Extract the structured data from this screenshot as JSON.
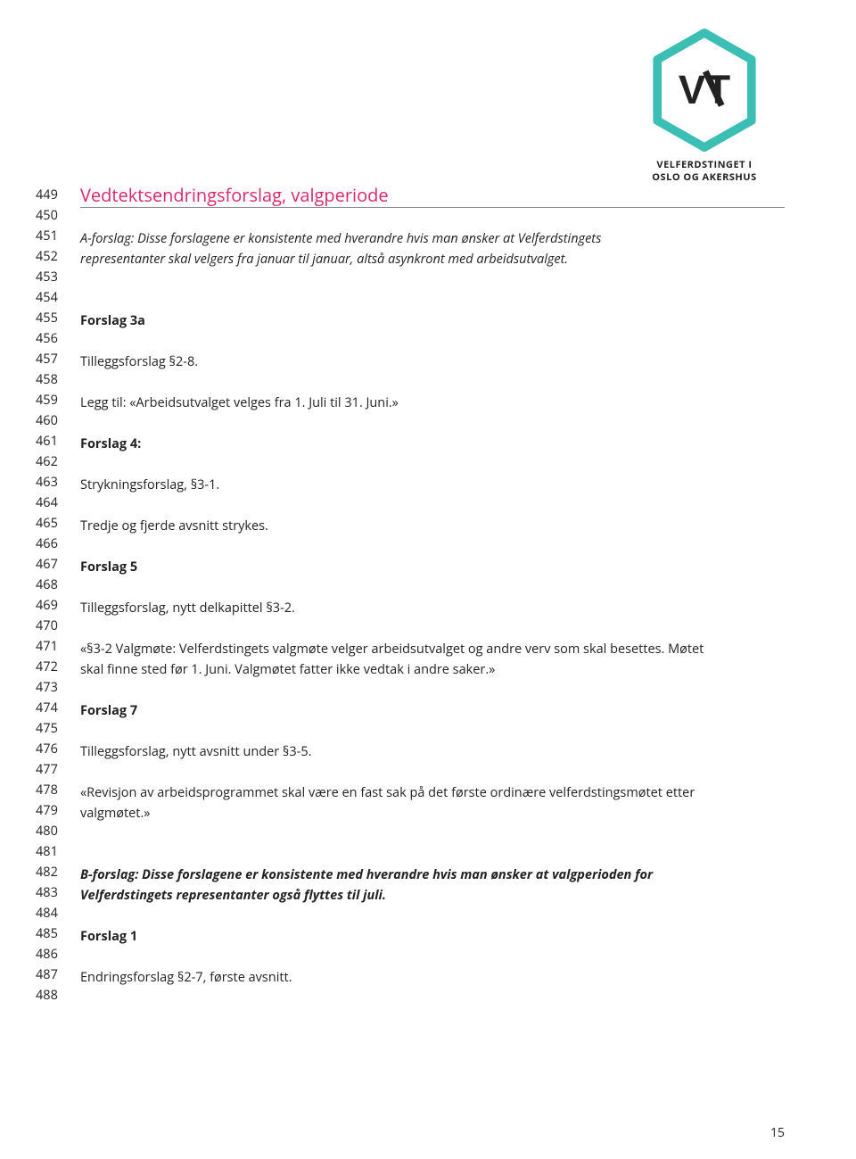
{
  "logo": {
    "caption_line1": "VELFERDSTINGET I",
    "caption_line2": "OSLO OG AKERSHUS",
    "vt_text": "VT",
    "hex_stroke": "#3bbfb5",
    "hex_stroke_width": 8,
    "text_color": "#222222"
  },
  "line_numbers": {
    "start": 449,
    "end": 488
  },
  "heading": {
    "text": "Vedtektsendringsforslag, valgperiode",
    "color": "#d9296c",
    "fontsize": 20,
    "underline_color": "#888888"
  },
  "body_text": {
    "fontsize": 14.5,
    "line_height": 23,
    "color": "#222222"
  },
  "page_background": "#ffffff",
  "lines": [
    {
      "type": "heading",
      "text": "Vedtektsendringsforslag, valgperiode"
    },
    {
      "type": "blank"
    },
    {
      "type": "para",
      "style": "italic",
      "text": "A-forslag: Disse forslagene er konsistente med hverandre hvis man ønsker at Velferdstingets"
    },
    {
      "type": "para",
      "style": "italic",
      "text": "representanter skal velgers fra januar til januar, altså asynkront med arbeidsutvalget."
    },
    {
      "type": "blank"
    },
    {
      "type": "blank"
    },
    {
      "type": "para",
      "style": "bold",
      "text": "Forslag 3a"
    },
    {
      "type": "blank"
    },
    {
      "type": "para",
      "text": "Tilleggsforslag §2-8."
    },
    {
      "type": "blank"
    },
    {
      "type": "para",
      "text": "Legg til: «Arbeidsutvalget velges fra 1. Juli til 31. Juni.»"
    },
    {
      "type": "blank"
    },
    {
      "type": "para",
      "style": "bold",
      "text": "Forslag 4:"
    },
    {
      "type": "blank"
    },
    {
      "type": "para",
      "text": "Strykningsforslag, §3-1."
    },
    {
      "type": "blank"
    },
    {
      "type": "para",
      "text": "Tredje og fjerde avsnitt strykes."
    },
    {
      "type": "blank"
    },
    {
      "type": "para",
      "style": "bold",
      "text": "Forslag 5"
    },
    {
      "type": "blank"
    },
    {
      "type": "para",
      "text": "Tilleggsforslag, nytt delkapittel §3-2."
    },
    {
      "type": "blank"
    },
    {
      "type": "para",
      "text": "«§3-2 Valgmøte: Velferdstingets valgmøte velger arbeidsutvalget og andre verv som skal besettes. Møtet"
    },
    {
      "type": "para",
      "text": "skal finne sted før 1. Juni. Valgmøtet fatter ikke vedtak i andre saker.»"
    },
    {
      "type": "blank"
    },
    {
      "type": "para",
      "style": "bold",
      "text": "Forslag 7"
    },
    {
      "type": "blank"
    },
    {
      "type": "para",
      "text": "Tilleggsforslag, nytt avsnitt under §3-5."
    },
    {
      "type": "blank"
    },
    {
      "type": "para",
      "text": "«Revisjon av arbeidsprogrammet skal være en fast sak på det første ordinære velferdstingsmøtet etter"
    },
    {
      "type": "para",
      "text": "valgmøtet.»"
    },
    {
      "type": "blank"
    },
    {
      "type": "blank"
    },
    {
      "type": "para",
      "style": "bold-italic",
      "text": "B-forslag: Disse forslagene er konsistente med hverandre hvis man ønsker at valgperioden for"
    },
    {
      "type": "para",
      "style": "bold-italic",
      "text": "Velferdstingets representanter også flyttes til juli."
    },
    {
      "type": "blank"
    },
    {
      "type": "para",
      "style": "bold",
      "text": "Forslag 1"
    },
    {
      "type": "blank"
    },
    {
      "type": "para",
      "text": "Endringsforslag §2-7, første avsnitt."
    },
    {
      "type": "blank"
    }
  ],
  "page_number": "15"
}
